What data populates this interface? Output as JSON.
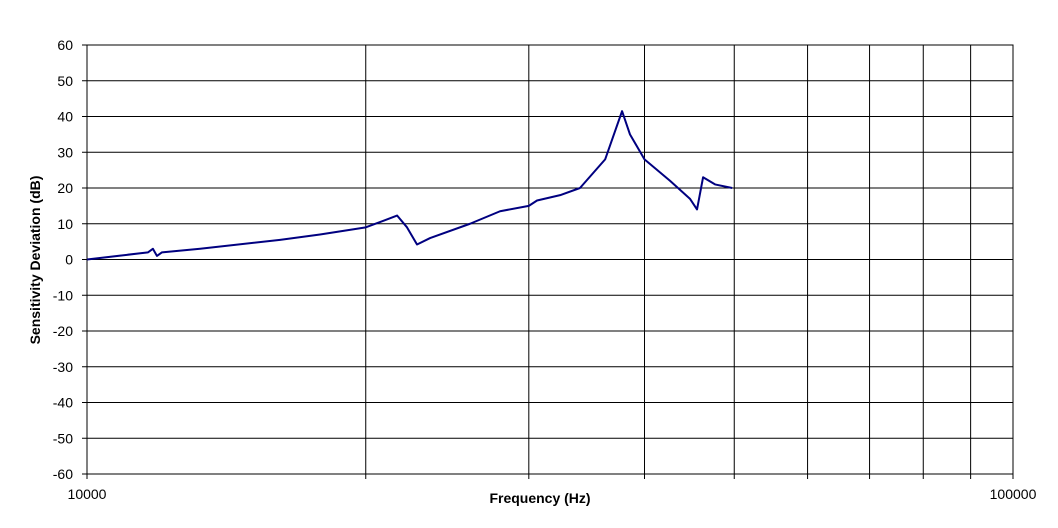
{
  "chart_data": {
    "type": "line",
    "log_x": true,
    "grid": true,
    "x_label": "Frequency (Hz)",
    "y_label": "Sensitivity Deviation (dB)",
    "xlim": [
      10000,
      100000
    ],
    "xticks": [
      10000,
      100000
    ],
    "xminor": [
      20000,
      30000,
      40000,
      50000,
      60000,
      70000,
      80000,
      90000
    ],
    "ylim": [
      -60,
      60
    ],
    "yticks": [
      -60,
      -50,
      -40,
      -30,
      -20,
      -10,
      0,
      10,
      20,
      30,
      40,
      50,
      60
    ],
    "x": [
      10000,
      11640,
      11780,
      11900,
      12050,
      13250,
      16160,
      17850,
      20000,
      20980,
      21620,
      22160,
      22720,
      23470,
      25920,
      27930,
      30000,
      30620,
      32430,
      34070,
      36270,
      37830,
      38580,
      40000,
      42630,
      44780,
      45580,
      46270,
      47670,
      49740
    ],
    "series": [
      {
        "color": "#000080",
        "values": [
          0,
          2,
          3,
          1,
          2,
          3,
          5.5,
          7,
          9,
          11,
          12.3,
          9,
          4.2,
          6,
          10,
          13.5,
          15,
          16.5,
          18,
          20,
          28,
          41.5,
          35,
          28,
          22,
          17,
          14,
          23,
          21,
          20
        ]
      }
    ]
  }
}
